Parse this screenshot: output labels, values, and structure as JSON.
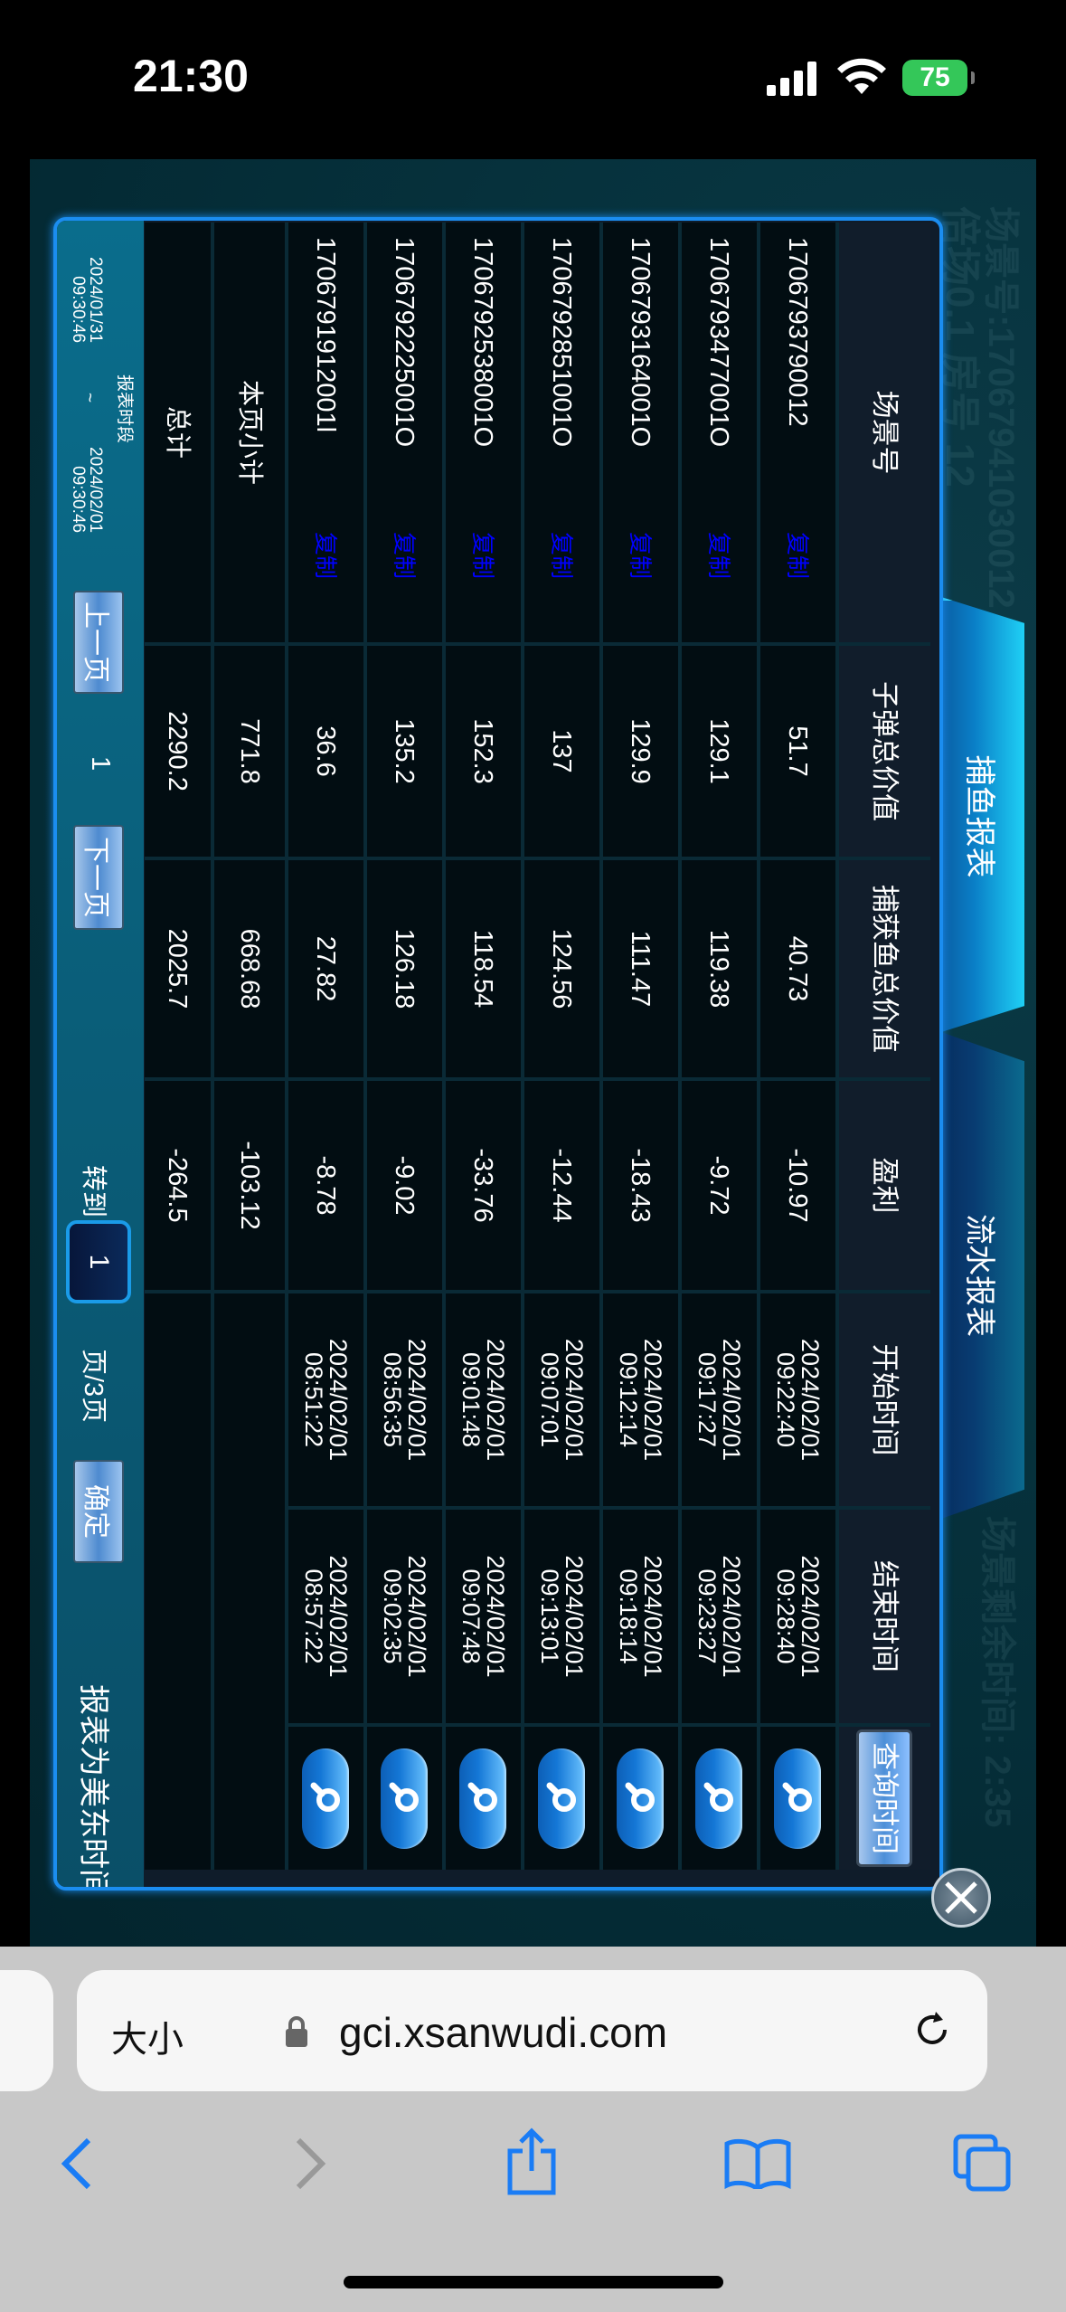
{
  "status_bar": {
    "time": "21:30",
    "battery": "75"
  },
  "game": {
    "watermark": [
      "倍场0.1 房号 12",
      "场景号:17067941030012",
      "场景剩余时间: 2:35"
    ],
    "tabs": [
      {
        "label": "捕鱼报表",
        "active": true
      },
      {
        "label": "流水报表",
        "active": false
      }
    ],
    "table": {
      "headers": [
        "场景号",
        "子弹总价值",
        "捕获鱼总价值",
        "盈利",
        "开始时间",
        "结束时间"
      ],
      "query_button": "查询时间",
      "copy_label": "复制",
      "rows": [
        {
          "id": "1706793790012",
          "bullet": "51.7",
          "fish": "40.73",
          "profit": "-10.97",
          "start": "2024/02/01\n09:22:40",
          "end": "2024/02/01\n09:28:40"
        },
        {
          "id": "1706793477001O",
          "bullet": "129.1",
          "fish": "119.38",
          "profit": "-9.72",
          "start": "2024/02/01\n09:17:27",
          "end": "2024/02/01\n09:23:27"
        },
        {
          "id": "1706793164001O",
          "bullet": "129.9",
          "fish": "111.47",
          "profit": "-18.43",
          "start": "2024/02/01\n09:12:14",
          "end": "2024/02/01\n09:18:14"
        },
        {
          "id": "1706792851001O",
          "bullet": "137",
          "fish": "124.56",
          "profit": "-12.44",
          "start": "2024/02/01\n09:07:01",
          "end": "2024/02/01\n09:13:01"
        },
        {
          "id": "1706792538001O",
          "bullet": "152.3",
          "fish": "118.54",
          "profit": "-33.76",
          "start": "2024/02/01\n09:01:48",
          "end": "2024/02/01\n09:07:48"
        },
        {
          "id": "1706792225001O",
          "bullet": "135.2",
          "fish": "126.18",
          "profit": "-9.02",
          "start": "2024/02/01\n08:56:35",
          "end": "2024/02/01\n09:02:35"
        },
        {
          "id": "1706791912001l",
          "bullet": "36.6",
          "fish": "27.82",
          "profit": "-8.78",
          "start": "2024/02/01\n08:51:22",
          "end": "2024/02/01\n08:57:22"
        }
      ],
      "subtotal": {
        "label": "本页小计",
        "bullet": "771.8",
        "fish": "668.68",
        "profit": "-103.12"
      },
      "total": {
        "label": "总计",
        "bullet": "2290.2",
        "fish": "2025.7",
        "profit": "-264.5"
      }
    },
    "footer": {
      "period_label": "报表时段",
      "period_start": "2024/01/31\n09:30:46",
      "separator": "~",
      "period_end": "2024/02/01\n09:30:46",
      "prev": "上一页",
      "page": "1",
      "next": "下一页",
      "goto": "转到",
      "goto_value": "1",
      "pages": "页/3页",
      "confirm": "确定",
      "note": "报表为美东时间"
    }
  },
  "browser": {
    "text_size": "大小",
    "url": "gci.xsanwudi.com"
  }
}
